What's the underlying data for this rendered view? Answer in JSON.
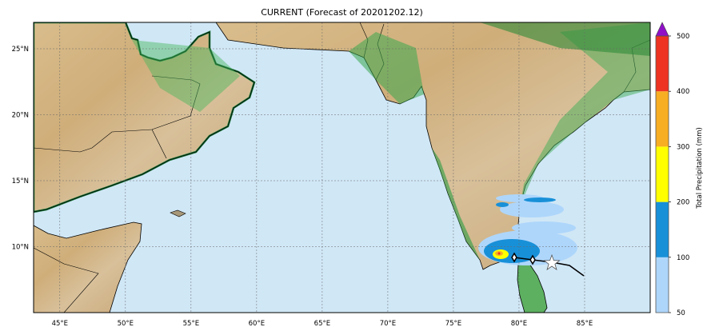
{
  "title": "CURRENT (Forecast of 20201202.12)",
  "map": {
    "lon_range": [
      43,
      90
    ],
    "lat_range": [
      5,
      27
    ],
    "grid": true,
    "x_ticks": [
      "45°E",
      "50°E",
      "55°E",
      "60°E",
      "65°E",
      "70°E",
      "75°E",
      "80°E",
      "85°E"
    ],
    "y_ticks": [
      "25°N",
      "20°N",
      "15°N",
      "10°N"
    ],
    "colors": {
      "ocean": "#d0e7f6",
      "land_low": "#3cb85a",
      "land_high": "#d8b888",
      "track": "#000000"
    }
  },
  "colorbar": {
    "label": "Total Precipitation (mm)",
    "ticks": [
      "50",
      "100",
      "200",
      "300",
      "400",
      "500"
    ],
    "colors": [
      "#aed6fb",
      "#1890d8",
      "#ffff00",
      "#f8ae22",
      "#ee3322"
    ],
    "extend_color": "#9010c8"
  },
  "storm": {
    "marker": "star-icon"
  }
}
